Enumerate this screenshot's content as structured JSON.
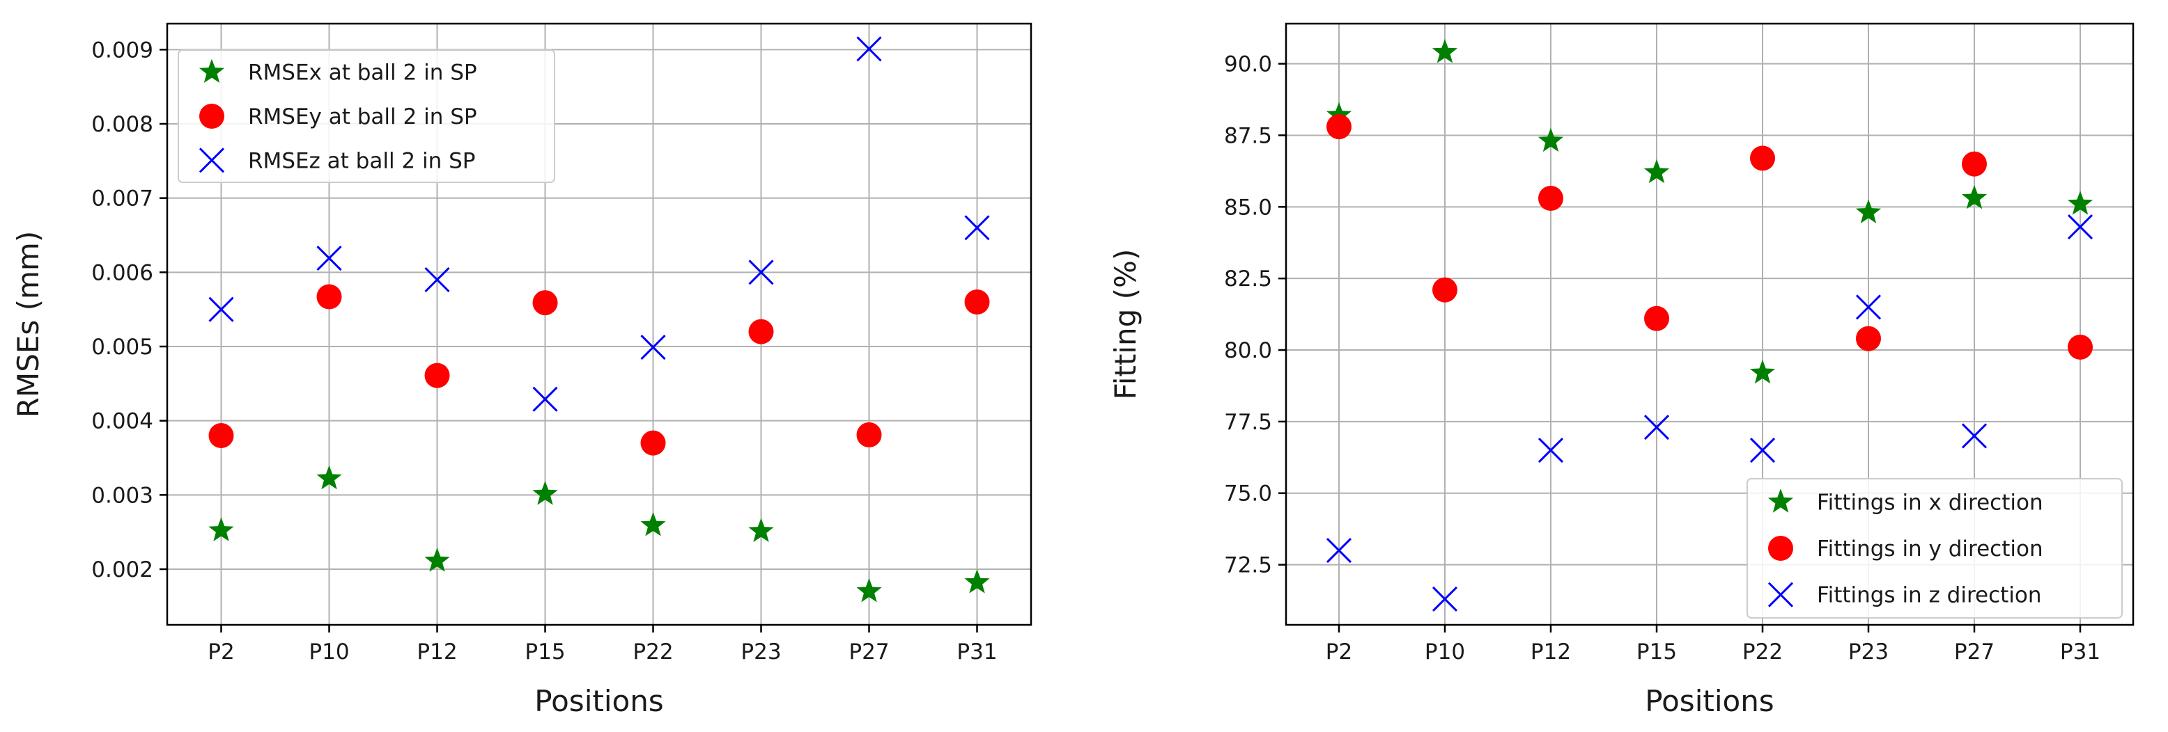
{
  "chart_data": [
    {
      "type": "scatter",
      "xlabel": "Positions",
      "ylabel": "RMSEs (mm)",
      "categories": [
        "P2",
        "P10",
        "P12",
        "P15",
        "P22",
        "P23",
        "P27",
        "P31"
      ],
      "ylim": [
        0.00125,
        0.00935
      ],
      "yticks": [
        0.002,
        0.003,
        0.004,
        0.005,
        0.006,
        0.007,
        0.008,
        0.009
      ],
      "ytick_labels": [
        "0.002",
        "0.003",
        "0.004",
        "0.005",
        "0.006",
        "0.007",
        "0.008",
        "0.009"
      ],
      "grid": true,
      "legend_position": "top-left",
      "series": [
        {
          "name": "RMSEx at ball 2 in SP",
          "marker": "star",
          "color": "#008000",
          "values": [
            0.00252,
            0.00322,
            0.00211,
            0.00301,
            0.00259,
            0.00251,
            0.0017,
            0.00182
          ]
        },
        {
          "name": "RMSEy at ball 2 in SP",
          "marker": "circle",
          "color": "#ff0000",
          "values": [
            0.0038,
            0.00567,
            0.00461,
            0.00559,
            0.0037,
            0.0052,
            0.00381,
            0.0056
          ]
        },
        {
          "name": "RMSEz at ball 2 in SP",
          "marker": "x",
          "color": "#0000ff",
          "values": [
            0.0055,
            0.00619,
            0.0059,
            0.00429,
            0.00499,
            0.006,
            0.00901,
            0.0066
          ]
        }
      ]
    },
    {
      "type": "scatter",
      "xlabel": "Positions",
      "ylabel": "Fitting (%)",
      "categories": [
        "P2",
        "P10",
        "P12",
        "P15",
        "P22",
        "P23",
        "P27",
        "P31"
      ],
      "ylim": [
        70.4,
        91.4
      ],
      "yticks": [
        72.5,
        75.0,
        77.5,
        80.0,
        82.5,
        85.0,
        87.5,
        90.0
      ],
      "ytick_labels": [
        "72.5",
        "75.0",
        "77.5",
        "80.0",
        "82.5",
        "85.0",
        "87.5",
        "90.0"
      ],
      "grid": true,
      "legend_position": "bottom-right",
      "series": [
        {
          "name": "Fittings in x direction",
          "marker": "star",
          "color": "#008000",
          "values": [
            88.2,
            90.4,
            87.3,
            86.2,
            79.2,
            84.8,
            85.3,
            85.1
          ]
        },
        {
          "name": "Fittings in y direction",
          "marker": "circle",
          "color": "#ff0000",
          "values": [
            87.8,
            82.1,
            85.3,
            81.1,
            86.7,
            80.4,
            86.5,
            80.1
          ]
        },
        {
          "name": "Fittings in z direction",
          "marker": "x",
          "color": "#0000ff",
          "values": [
            73.0,
            71.3,
            76.5,
            77.3,
            76.5,
            81.5,
            77.0,
            84.3
          ]
        }
      ]
    }
  ]
}
